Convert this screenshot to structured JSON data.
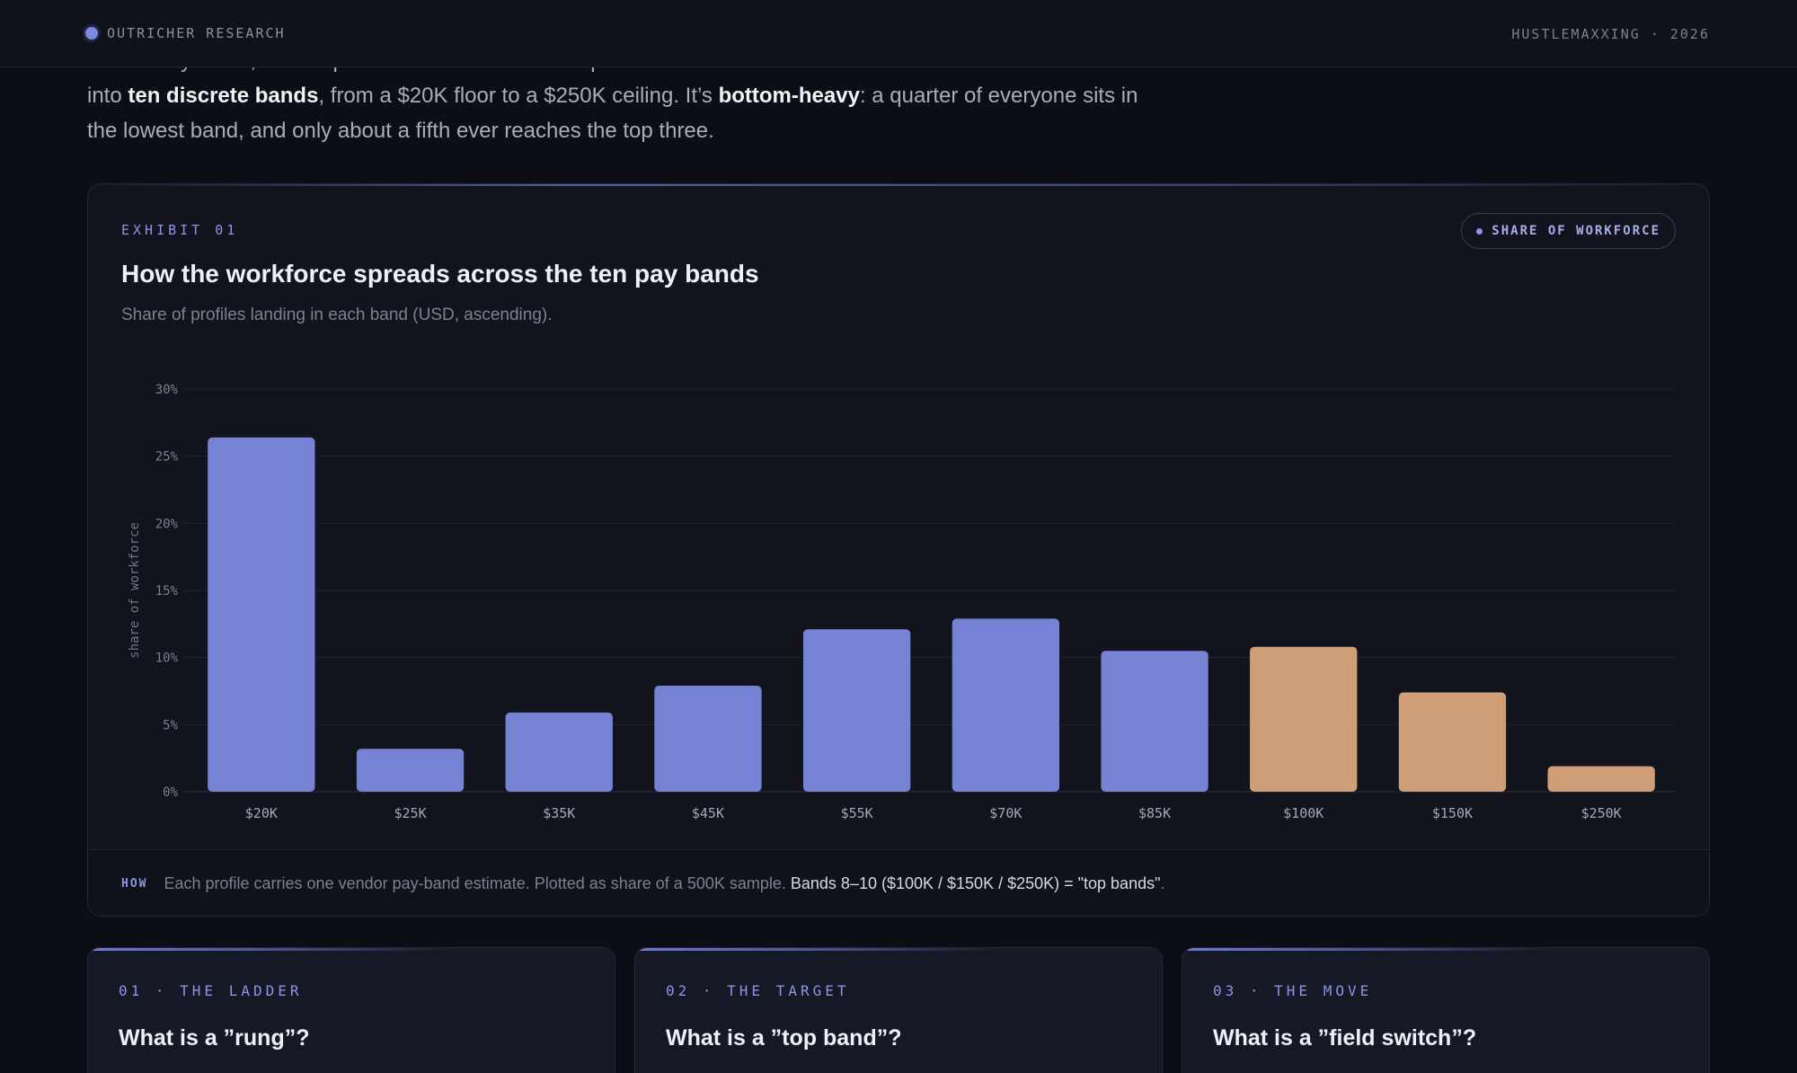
{
  "header": {
    "brand": "OUTRICHER RESEARCH",
    "issue": "HUSTLEMAXXING · 2026"
  },
  "intro": {
    "line1": "Before any move, the shape of the ladder itself. Compensation in this data isn’t a smooth curve — it resolves",
    "line2_pre": "into ",
    "line2_bold1": "ten discrete bands",
    "line2_mid": ", from a $20K floor to a $250K ceiling. It’s ",
    "line2_bold2": "bottom-heavy",
    "line2_post": ": a quarter of everyone sits in",
    "line3": "the lowest band, and only about a fifth ever reaches the top three."
  },
  "exhibit": {
    "kicker": "EXHIBIT 01",
    "badge": "SHARE OF WORKFORCE",
    "title": "How the workforce spreads across the ten pay bands",
    "subtitle": "Share of profiles landing in each band (USD, ascending).",
    "note_tag": "HOW",
    "note_text": "Each profile carries one vendor pay-band estimate. Plotted as share of a 500K sample.",
    "note_strong": "Bands 8–10 ($100K / $150K / $250K) = \"top bands\"",
    "note_end": "."
  },
  "chart_data": {
    "type": "bar",
    "title": "How the workforce spreads across the ten pay bands",
    "subtitle": "Share of profiles landing in each band (USD, ascending).",
    "xlabel": "",
    "ylabel": "share of workforce",
    "ylim": [
      0,
      30
    ],
    "yticks": [
      0,
      5,
      10,
      15,
      20,
      25,
      30
    ],
    "ytick_labels": [
      "0%",
      "5%",
      "10%",
      "15%",
      "20%",
      "25%",
      "30%"
    ],
    "grid": true,
    "categories": [
      "$20K",
      "$25K",
      "$35K",
      "$45K",
      "$55K",
      "$70K",
      "$85K",
      "$100K",
      "$150K",
      "$250K"
    ],
    "values": [
      26.4,
      3.2,
      5.9,
      7.9,
      12.1,
      12.9,
      10.5,
      10.8,
      7.4,
      1.9
    ],
    "top_band_categories": [
      "$100K",
      "$150K",
      "$250K"
    ],
    "colors": {
      "base": "#7682d4",
      "top": "#d09e76"
    }
  },
  "cards": [
    {
      "kicker": "01 · THE LADDER",
      "title": "What is a ”rung”?"
    },
    {
      "kicker": "02 · THE TARGET",
      "title": "What is a ”top band”?"
    },
    {
      "kicker": "03 · THE MOVE",
      "title": "What is a ”field switch”?"
    }
  ]
}
